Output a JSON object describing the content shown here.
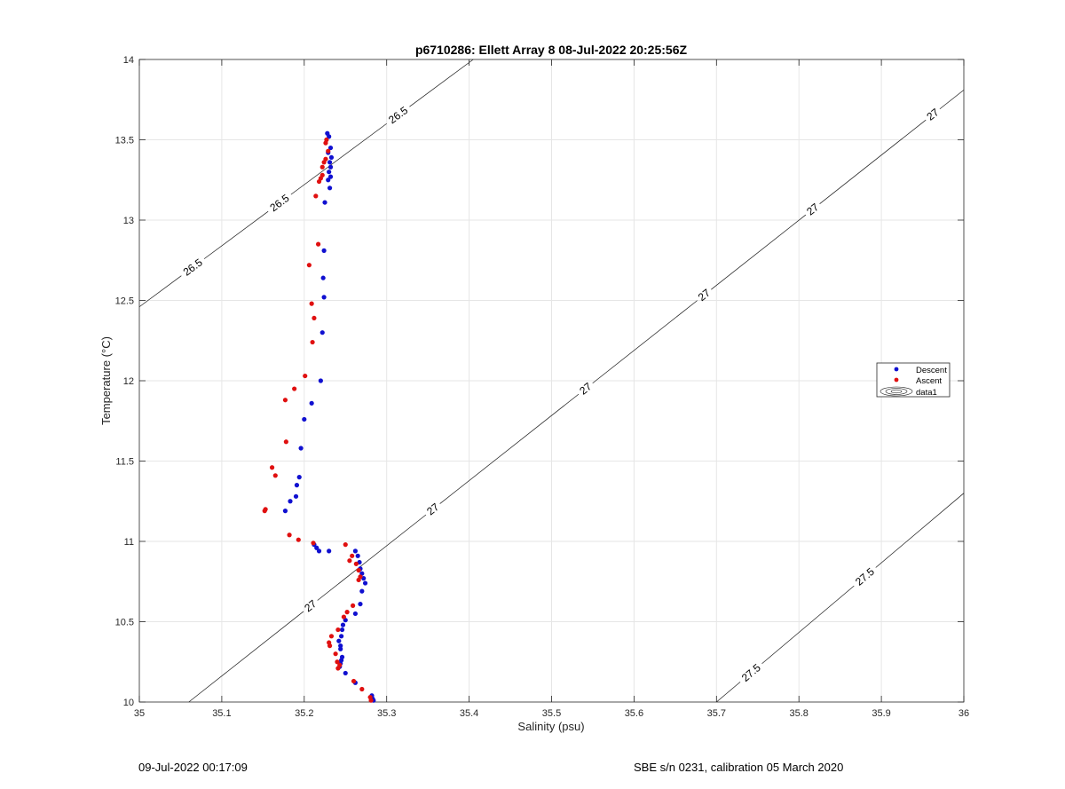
{
  "chart_data": {
    "type": "scatter",
    "title": "p6710286: Ellett Array 8 08-Jul-2022 20:25:56Z",
    "xlabel": "Salinity (psu)",
    "ylabel": "Temperature (°C)",
    "xlim": [
      35,
      36
    ],
    "ylim": [
      10,
      14
    ],
    "xticks": [
      "35",
      "35.1",
      "35.2",
      "35.3",
      "35.4",
      "35.5",
      "35.6",
      "35.7",
      "35.8",
      "35.9",
      "36"
    ],
    "yticks": [
      "10",
      "10.5",
      "11",
      "11.5",
      "12",
      "12.5",
      "13",
      "13.5",
      "14"
    ],
    "grid": true,
    "legend_position": "right",
    "legend": [
      "Descent",
      "Ascent",
      "data1"
    ],
    "series": [
      {
        "name": "Descent",
        "color": "#1010d0",
        "points": [
          [
            35.228,
            13.54
          ],
          [
            35.23,
            13.52
          ],
          [
            35.232,
            13.45
          ],
          [
            35.229,
            13.42
          ],
          [
            35.233,
            13.39
          ],
          [
            35.231,
            13.36
          ],
          [
            35.232,
            13.33
          ],
          [
            35.23,
            13.3
          ],
          [
            35.232,
            13.27
          ],
          [
            35.229,
            13.25
          ],
          [
            35.231,
            13.2
          ],
          [
            35.225,
            13.11
          ],
          [
            35.224,
            12.81
          ],
          [
            35.223,
            12.64
          ],
          [
            35.224,
            12.52
          ],
          [
            35.222,
            12.3
          ],
          [
            35.22,
            12.0
          ],
          [
            35.209,
            11.86
          ],
          [
            35.2,
            11.76
          ],
          [
            35.196,
            11.58
          ],
          [
            35.194,
            11.4
          ],
          [
            35.191,
            11.35
          ],
          [
            35.19,
            11.28
          ],
          [
            35.183,
            11.25
          ],
          [
            35.177,
            11.19
          ],
          [
            35.212,
            10.98
          ],
          [
            35.215,
            10.96
          ],
          [
            35.218,
            10.94
          ],
          [
            35.23,
            10.94
          ],
          [
            35.262,
            10.94
          ],
          [
            35.265,
            10.91
          ],
          [
            35.267,
            10.87
          ],
          [
            35.268,
            10.83
          ],
          [
            35.27,
            10.8
          ],
          [
            35.272,
            10.77
          ],
          [
            35.274,
            10.74
          ],
          [
            35.27,
            10.69
          ],
          [
            35.268,
            10.61
          ],
          [
            35.262,
            10.55
          ],
          [
            35.25,
            10.51
          ],
          [
            35.247,
            10.48
          ],
          [
            35.246,
            10.45
          ],
          [
            35.245,
            10.41
          ],
          [
            35.242,
            10.38
          ],
          [
            35.244,
            10.35
          ],
          [
            35.244,
            10.33
          ],
          [
            35.246,
            10.28
          ],
          [
            35.245,
            10.26
          ],
          [
            35.244,
            10.24
          ],
          [
            35.243,
            10.22
          ],
          [
            35.25,
            10.18
          ],
          [
            35.262,
            10.12
          ],
          [
            35.282,
            10.04
          ],
          [
            35.283,
            10.02
          ],
          [
            35.284,
            10.01
          ]
        ]
      },
      {
        "name": "Ascent",
        "color": "#e01010",
        "points": [
          [
            35.227,
            13.5
          ],
          [
            35.226,
            13.48
          ],
          [
            35.229,
            13.43
          ],
          [
            35.226,
            13.38
          ],
          [
            35.224,
            13.36
          ],
          [
            35.222,
            13.33
          ],
          [
            35.222,
            13.28
          ],
          [
            35.22,
            13.26
          ],
          [
            35.218,
            13.24
          ],
          [
            35.214,
            13.15
          ],
          [
            35.217,
            12.85
          ],
          [
            35.206,
            12.72
          ],
          [
            35.209,
            12.48
          ],
          [
            35.212,
            12.39
          ],
          [
            35.21,
            12.24
          ],
          [
            35.201,
            12.03
          ],
          [
            35.188,
            11.95
          ],
          [
            35.177,
            11.88
          ],
          [
            35.178,
            11.62
          ],
          [
            35.161,
            11.46
          ],
          [
            35.165,
            11.41
          ],
          [
            35.153,
            11.2
          ],
          [
            35.152,
            11.19
          ],
          [
            35.182,
            11.04
          ],
          [
            35.193,
            11.01
          ],
          [
            35.211,
            10.99
          ],
          [
            35.25,
            10.98
          ],
          [
            35.255,
            10.88
          ],
          [
            35.258,
            10.91
          ],
          [
            35.263,
            10.86
          ],
          [
            35.266,
            10.82
          ],
          [
            35.268,
            10.78
          ],
          [
            35.266,
            10.76
          ],
          [
            35.259,
            10.6
          ],
          [
            35.252,
            10.56
          ],
          [
            35.248,
            10.53
          ],
          [
            35.241,
            10.45
          ],
          [
            35.233,
            10.41
          ],
          [
            35.23,
            10.37
          ],
          [
            35.231,
            10.35
          ],
          [
            35.238,
            10.3
          ],
          [
            35.24,
            10.25
          ],
          [
            35.243,
            10.23
          ],
          [
            35.241,
            10.21
          ],
          [
            35.26,
            10.13
          ],
          [
            35.27,
            10.08
          ],
          [
            35.28,
            10.03
          ],
          [
            35.281,
            10.01
          ]
        ]
      }
    ],
    "isopycnals": [
      {
        "sigma": "26.5",
        "labels": [
          "26.5",
          "26.5",
          "26.5"
        ]
      },
      {
        "sigma": "27",
        "labels": [
          "27",
          "27",
          "27",
          "27",
          "27",
          "27"
        ]
      },
      {
        "sigma": "27.5",
        "labels": [
          "27.5",
          "27.5"
        ]
      }
    ]
  },
  "footer": {
    "left": "09-Jul-2022 00:17:09",
    "right": "SBE s/n 0231, calibration 05 March 2020"
  }
}
